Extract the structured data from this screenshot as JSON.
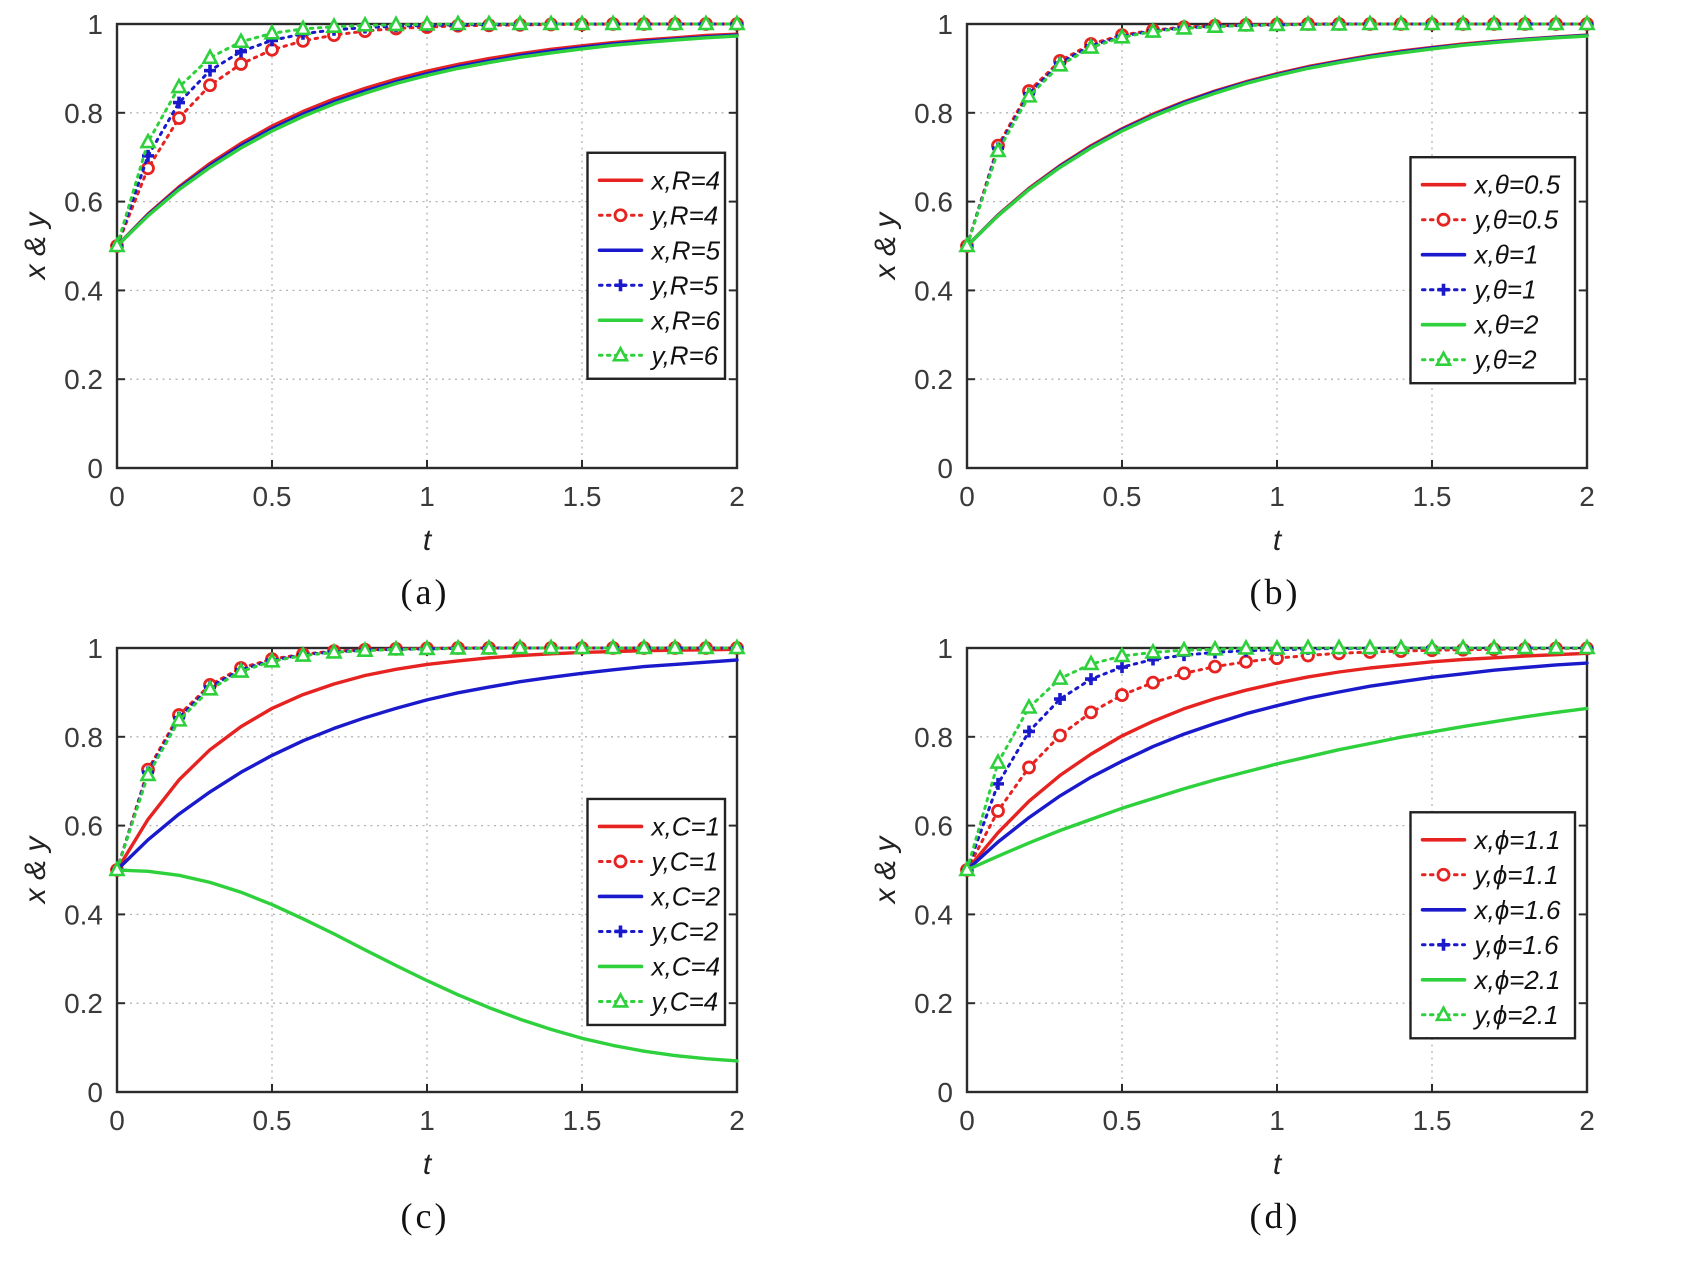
{
  "figure": {
    "background": "#ffffff"
  },
  "colors": {
    "red": "#e62320",
    "blue": "#1a1acc",
    "green": "#2ed13c",
    "axis": "#2b2b2b",
    "grid": "#b3b3b3",
    "tick_label": "#3a3a3a",
    "legend_border": "#222222",
    "legend_bg": "#ffffff"
  },
  "chart_data": [
    {
      "id": "a",
      "type": "line",
      "caption": "(a)",
      "xlabel": "t",
      "ylabel": "x & y",
      "xlim": [
        0,
        2
      ],
      "ylim": [
        0,
        1
      ],
      "xticks": [
        "0",
        "0.5",
        "1",
        "1.5",
        "2"
      ],
      "yticks": [
        "0",
        "0.2",
        "0.4",
        "0.6",
        "0.8",
        "1"
      ],
      "grid": true,
      "legend_position": "right-middle",
      "legend_y_frac": 0.29,
      "x_step": 0.1,
      "series": [
        {
          "label": "x,R=4",
          "color": "red",
          "style": "solid",
          "marker": "none",
          "values": [
            0.5,
            0.572,
            0.633,
            0.686,
            0.731,
            0.77,
            0.803,
            0.831,
            0.855,
            0.876,
            0.894,
            0.909,
            0.922,
            0.933,
            0.943,
            0.951,
            0.958,
            0.964,
            0.969,
            0.974,
            0.977
          ]
        },
        {
          "label": "y,R=4",
          "color": "red",
          "style": "dotted",
          "marker": "circle",
          "values": [
            0.5,
            0.675,
            0.788,
            0.862,
            0.91,
            0.942,
            0.962,
            0.975,
            0.984,
            0.99,
            0.993,
            0.996,
            0.997,
            0.998,
            0.999,
            0.999,
            1,
            1,
            1,
            1,
            1
          ]
        },
        {
          "label": "x,R=5",
          "color": "blue",
          "style": "solid",
          "marker": "none",
          "values": [
            0.5,
            0.57,
            0.63,
            0.681,
            0.726,
            0.764,
            0.797,
            0.825,
            0.849,
            0.87,
            0.888,
            0.904,
            0.917,
            0.929,
            0.939,
            0.947,
            0.955,
            0.961,
            0.966,
            0.971,
            0.975
          ]
        },
        {
          "label": "y,R=5",
          "color": "blue",
          "style": "dotted",
          "marker": "plus",
          "values": [
            0.5,
            0.703,
            0.823,
            0.895,
            0.938,
            0.963,
            0.978,
            0.987,
            0.992,
            0.995,
            0.997,
            0.998,
            0.999,
            0.999,
            1,
            1,
            1,
            1,
            1,
            1,
            1
          ]
        },
        {
          "label": "x,R=6",
          "color": "green",
          "style": "solid",
          "marker": "none",
          "values": [
            0.5,
            0.568,
            0.627,
            0.677,
            0.721,
            0.759,
            0.792,
            0.82,
            0.844,
            0.866,
            0.884,
            0.9,
            0.913,
            0.925,
            0.935,
            0.944,
            0.952,
            0.958,
            0.964,
            0.969,
            0.973
          ]
        },
        {
          "label": "y,R=6",
          "color": "green",
          "style": "dotted",
          "marker": "triangle",
          "values": [
            0.5,
            0.734,
            0.858,
            0.924,
            0.96,
            0.979,
            0.989,
            0.994,
            0.997,
            0.998,
            0.999,
            1,
            1,
            1,
            1,
            1,
            1,
            1,
            1,
            1,
            1
          ]
        }
      ]
    },
    {
      "id": "b",
      "type": "line",
      "caption": "(b)",
      "xlabel": "t",
      "ylabel": "x & y",
      "xlim": [
        0,
        2
      ],
      "ylim": [
        0,
        1
      ],
      "xticks": [
        "0",
        "0.5",
        "1",
        "1.5",
        "2"
      ],
      "yticks": [
        "0",
        "0.2",
        "0.4",
        "0.6",
        "0.8",
        "1"
      ],
      "grid": true,
      "legend_position": "right-middle",
      "legend_y_frac": 0.3,
      "x_step": 0.1,
      "series": [
        {
          "label": "x,θ=0.5",
          "color": "red",
          "style": "solid",
          "marker": "none",
          "values": [
            0.5,
            0.57,
            0.63,
            0.681,
            0.726,
            0.764,
            0.797,
            0.825,
            0.849,
            0.87,
            0.888,
            0.904,
            0.917,
            0.929,
            0.939,
            0.947,
            0.955,
            0.961,
            0.966,
            0.971,
            0.975
          ]
        },
        {
          "label": "y,θ=0.5",
          "color": "red",
          "style": "dotted",
          "marker": "circle",
          "values": [
            0.5,
            0.726,
            0.849,
            0.917,
            0.955,
            0.975,
            0.986,
            0.993,
            0.996,
            0.998,
            0.999,
            1,
            1,
            1,
            1,
            1,
            1,
            1,
            1,
            1,
            1
          ]
        },
        {
          "label": "x,θ=1",
          "color": "blue",
          "style": "solid",
          "marker": "none",
          "values": [
            0.5,
            0.569,
            0.628,
            0.679,
            0.723,
            0.762,
            0.794,
            0.823,
            0.847,
            0.868,
            0.886,
            0.902,
            0.915,
            0.927,
            0.937,
            0.946,
            0.953,
            0.96,
            0.965,
            0.97,
            0.974
          ]
        },
        {
          "label": "y,θ=1",
          "color": "blue",
          "style": "dotted",
          "marker": "plus",
          "values": [
            0.5,
            0.72,
            0.843,
            0.912,
            0.951,
            0.972,
            0.985,
            0.991,
            0.995,
            0.997,
            0.998,
            0.999,
            1,
            1,
            1,
            1,
            1,
            1,
            1,
            1,
            1
          ]
        },
        {
          "label": "x,θ=2",
          "color": "green",
          "style": "solid",
          "marker": "none",
          "values": [
            0.5,
            0.568,
            0.627,
            0.677,
            0.721,
            0.759,
            0.792,
            0.82,
            0.844,
            0.866,
            0.884,
            0.9,
            0.913,
            0.925,
            0.935,
            0.944,
            0.952,
            0.958,
            0.964,
            0.969,
            0.973
          ]
        },
        {
          "label": "y,θ=2",
          "color": "green",
          "style": "dotted",
          "marker": "triangle",
          "values": [
            0.5,
            0.714,
            0.837,
            0.907,
            0.947,
            0.97,
            0.983,
            0.99,
            0.994,
            0.997,
            0.998,
            0.999,
            0.999,
            1,
            1,
            1,
            1,
            1,
            1,
            1,
            1
          ]
        }
      ]
    },
    {
      "id": "c",
      "type": "line",
      "caption": "(c)",
      "xlabel": "t",
      "ylabel": "x & y",
      "xlim": [
        0,
        2
      ],
      "ylim": [
        0,
        1
      ],
      "xticks": [
        "0",
        "0.5",
        "1",
        "1.5",
        "2"
      ],
      "yticks": [
        "0",
        "0.2",
        "0.4",
        "0.6",
        "0.8",
        "1"
      ],
      "grid": true,
      "legend_position": "right-middle",
      "legend_y_frac": 0.34,
      "x_step": 0.1,
      "series": [
        {
          "label": "x,C=1",
          "color": "red",
          "style": "solid",
          "marker": "none",
          "values": [
            0.5,
            0.614,
            0.703,
            0.771,
            0.823,
            0.864,
            0.895,
            0.919,
            0.938,
            0.952,
            0.963,
            0.971,
            0.978,
            0.983,
            0.987,
            0.99,
            0.992,
            0.994,
            0.995,
            0.996,
            0.997
          ]
        },
        {
          "label": "y,C=1",
          "color": "red",
          "style": "dotted",
          "marker": "circle",
          "values": [
            0.5,
            0.726,
            0.849,
            0.917,
            0.955,
            0.975,
            0.986,
            0.993,
            0.996,
            0.998,
            0.999,
            1,
            1,
            1,
            1,
            1,
            1,
            1,
            1,
            1,
            1
          ]
        },
        {
          "label": "x,C=2",
          "color": "blue",
          "style": "solid",
          "marker": "none",
          "values": [
            0.5,
            0.568,
            0.626,
            0.676,
            0.72,
            0.758,
            0.791,
            0.819,
            0.843,
            0.864,
            0.883,
            0.899,
            0.912,
            0.924,
            0.934,
            0.943,
            0.951,
            0.958,
            0.963,
            0.968,
            0.973
          ]
        },
        {
          "label": "y,C=2",
          "color": "blue",
          "style": "dotted",
          "marker": "plus",
          "values": [
            0.5,
            0.72,
            0.843,
            0.912,
            0.951,
            0.972,
            0.985,
            0.991,
            0.995,
            0.997,
            0.998,
            0.999,
            1,
            1,
            1,
            1,
            1,
            1,
            1,
            1,
            1
          ]
        },
        {
          "label": "x,C=4",
          "color": "green",
          "style": "solid",
          "marker": "none",
          "values": [
            0.5,
            0.497,
            0.488,
            0.472,
            0.45,
            0.422,
            0.39,
            0.356,
            0.32,
            0.285,
            0.251,
            0.219,
            0.19,
            0.164,
            0.141,
            0.121,
            0.105,
            0.092,
            0.082,
            0.075,
            0.07
          ]
        },
        {
          "label": "y,C=4",
          "color": "green",
          "style": "dotted",
          "marker": "triangle",
          "values": [
            0.5,
            0.714,
            0.837,
            0.907,
            0.947,
            0.97,
            0.983,
            0.99,
            0.994,
            0.997,
            0.998,
            0.999,
            0.999,
            1,
            1,
            1,
            1,
            1,
            1,
            1,
            1
          ]
        }
      ]
    },
    {
      "id": "d",
      "type": "line",
      "caption": "(d)",
      "xlabel": "t",
      "ylabel": "x & y",
      "xlim": [
        0,
        2
      ],
      "ylim": [
        0,
        1
      ],
      "xticks": [
        "0",
        "0.5",
        "1",
        "1.5",
        "2"
      ],
      "yticks": [
        "0",
        "0.2",
        "0.4",
        "0.6",
        "0.8",
        "1"
      ],
      "grid": true,
      "legend_position": "right-middle",
      "legend_y_frac": 0.37,
      "x_step": 0.1,
      "series": [
        {
          "label": "x,ϕ=1.1",
          "color": "red",
          "style": "solid",
          "marker": "none",
          "values": [
            0.5,
            0.584,
            0.655,
            0.713,
            0.761,
            0.802,
            0.835,
            0.863,
            0.886,
            0.905,
            0.921,
            0.935,
            0.946,
            0.955,
            0.962,
            0.969,
            0.974,
            0.978,
            0.982,
            0.985,
            0.988
          ]
        },
        {
          "label": "y,ϕ=1.1",
          "color": "red",
          "style": "dotted",
          "marker": "circle",
          "values": [
            0.5,
            0.633,
            0.731,
            0.803,
            0.855,
            0.894,
            0.922,
            0.943,
            0.958,
            0.969,
            0.977,
            0.983,
            0.988,
            0.991,
            0.993,
            0.995,
            0.996,
            0.997,
            0.998,
            0.999,
            0.999
          ]
        },
        {
          "label": "x,ϕ=1.6",
          "color": "blue",
          "style": "solid",
          "marker": "none",
          "values": [
            0.5,
            0.563,
            0.618,
            0.667,
            0.709,
            0.745,
            0.778,
            0.806,
            0.83,
            0.852,
            0.87,
            0.887,
            0.901,
            0.914,
            0.924,
            0.934,
            0.942,
            0.95,
            0.956,
            0.962,
            0.966
          ]
        },
        {
          "label": "y,ϕ=1.6",
          "color": "blue",
          "style": "dotted",
          "marker": "plus",
          "values": [
            0.5,
            0.694,
            0.812,
            0.885,
            0.93,
            0.957,
            0.974,
            0.984,
            0.99,
            0.994,
            0.996,
            0.998,
            0.999,
            0.999,
            1,
            1,
            1,
            1,
            1,
            1,
            1
          ]
        },
        {
          "label": "x,ϕ=2.1",
          "color": "green",
          "style": "solid",
          "marker": "none",
          "values": [
            0.5,
            0.531,
            0.561,
            0.589,
            0.614,
            0.639,
            0.661,
            0.683,
            0.703,
            0.721,
            0.739,
            0.755,
            0.771,
            0.785,
            0.799,
            0.811,
            0.823,
            0.834,
            0.845,
            0.855,
            0.864
          ]
        },
        {
          "label": "y,ϕ=2.1",
          "color": "green",
          "style": "dotted",
          "marker": "triangle",
          "values": [
            0.5,
            0.742,
            0.866,
            0.931,
            0.964,
            0.982,
            0.99,
            0.995,
            0.997,
            0.999,
            0.999,
            1,
            1,
            1,
            1,
            1,
            1,
            1,
            1,
            1,
            1
          ]
        }
      ]
    }
  ]
}
